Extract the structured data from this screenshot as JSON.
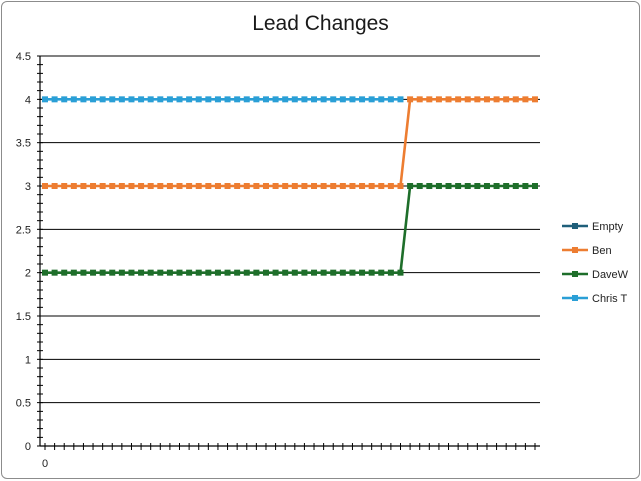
{
  "chart_data": {
    "type": "line",
    "title": "Lead Changes",
    "xlabel": "",
    "ylabel": "",
    "ylim": [
      0,
      4.5
    ],
    "y_ticks": [
      "0",
      "0.5",
      "1",
      "1.5",
      "2",
      "2.5",
      "3",
      "3.5",
      "4",
      "4.5"
    ],
    "x_tick_labels": [
      "0"
    ],
    "x_points": 52,
    "grid": "horizontal",
    "legend_position": "right",
    "series": [
      {
        "name": "Empty",
        "color": "#1f5f7a",
        "values": []
      },
      {
        "name": "Ben",
        "color": "#ed7d31",
        "values": [
          3,
          3,
          3,
          3,
          3,
          3,
          3,
          3,
          3,
          3,
          3,
          3,
          3,
          3,
          3,
          3,
          3,
          3,
          3,
          3,
          3,
          3,
          3,
          3,
          3,
          3,
          3,
          3,
          3,
          3,
          3,
          3,
          3,
          3,
          3,
          3,
          3,
          3,
          4,
          4,
          4,
          4,
          4,
          4,
          4,
          4,
          4,
          4,
          4,
          4,
          4,
          4
        ]
      },
      {
        "name": "DaveW",
        "color": "#1e6e2a",
        "values": [
          2,
          2,
          2,
          2,
          2,
          2,
          2,
          2,
          2,
          2,
          2,
          2,
          2,
          2,
          2,
          2,
          2,
          2,
          2,
          2,
          2,
          2,
          2,
          2,
          2,
          2,
          2,
          2,
          2,
          2,
          2,
          2,
          2,
          2,
          2,
          2,
          2,
          2,
          3,
          3,
          3,
          3,
          3,
          3,
          3,
          3,
          3,
          3,
          3,
          3,
          3,
          3
        ]
      },
      {
        "name": "Chris T",
        "color": "#2a9fd6",
        "values": [
          4,
          4,
          4,
          4,
          4,
          4,
          4,
          4,
          4,
          4,
          4,
          4,
          4,
          4,
          4,
          4,
          4,
          4,
          4,
          4,
          4,
          4,
          4,
          4,
          4,
          4,
          4,
          4,
          4,
          4,
          4,
          4,
          4,
          4,
          4,
          4,
          4,
          4
        ]
      }
    ]
  }
}
